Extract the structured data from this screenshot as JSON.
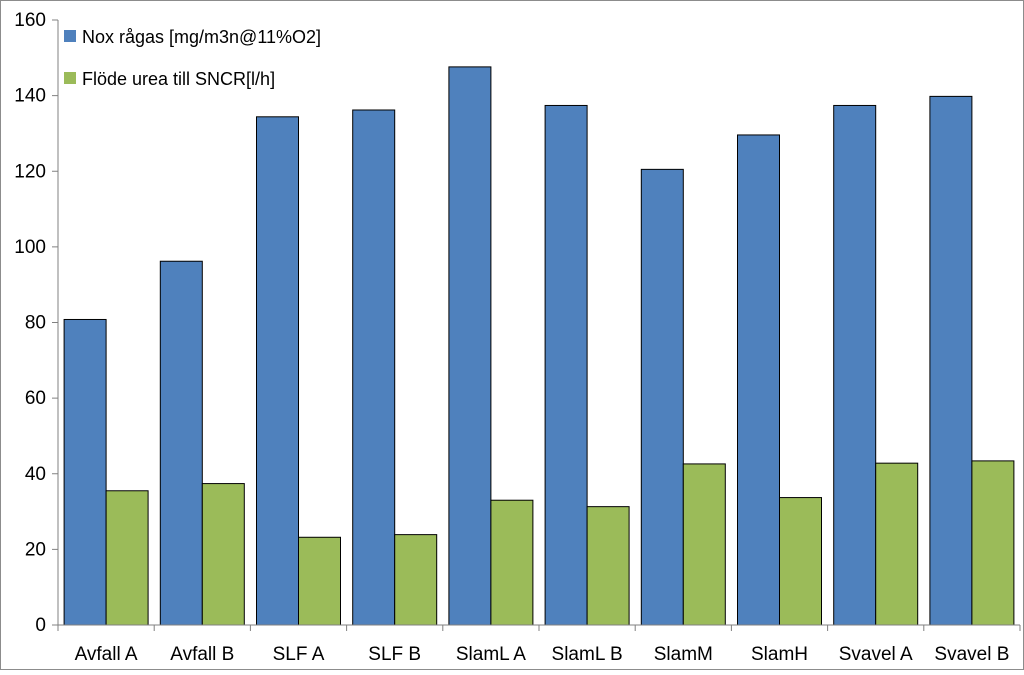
{
  "chart_data": {
    "type": "bar",
    "title": "",
    "xlabel": "",
    "ylabel": "",
    "ylim": [
      0,
      160
    ],
    "yticks": [
      0,
      20,
      40,
      60,
      80,
      100,
      120,
      140,
      160
    ],
    "grid": false,
    "legend_position": "top-left",
    "categories": [
      "Avfall A",
      "Avfall B",
      "SLF A",
      "SLF B",
      "SlamL A",
      "SlamL B",
      "SlamM",
      "SlamH",
      "Svavel A",
      "Svavel B"
    ],
    "series": [
      {
        "name": "Nox rågas [mg/m3n@11%O2]",
        "color": "#4F81BD",
        "values": [
          80.8,
          96.2,
          134.4,
          136.2,
          147.6,
          137.4,
          120.5,
          129.6,
          137.4,
          139.8
        ]
      },
      {
        "name": "Flöde urea till SNCR[l/h]",
        "color": "#9BBB59",
        "values": [
          35.5,
          37.4,
          23.2,
          23.9,
          33.0,
          31.3,
          42.6,
          33.7,
          42.8,
          43.4
        ]
      }
    ]
  }
}
